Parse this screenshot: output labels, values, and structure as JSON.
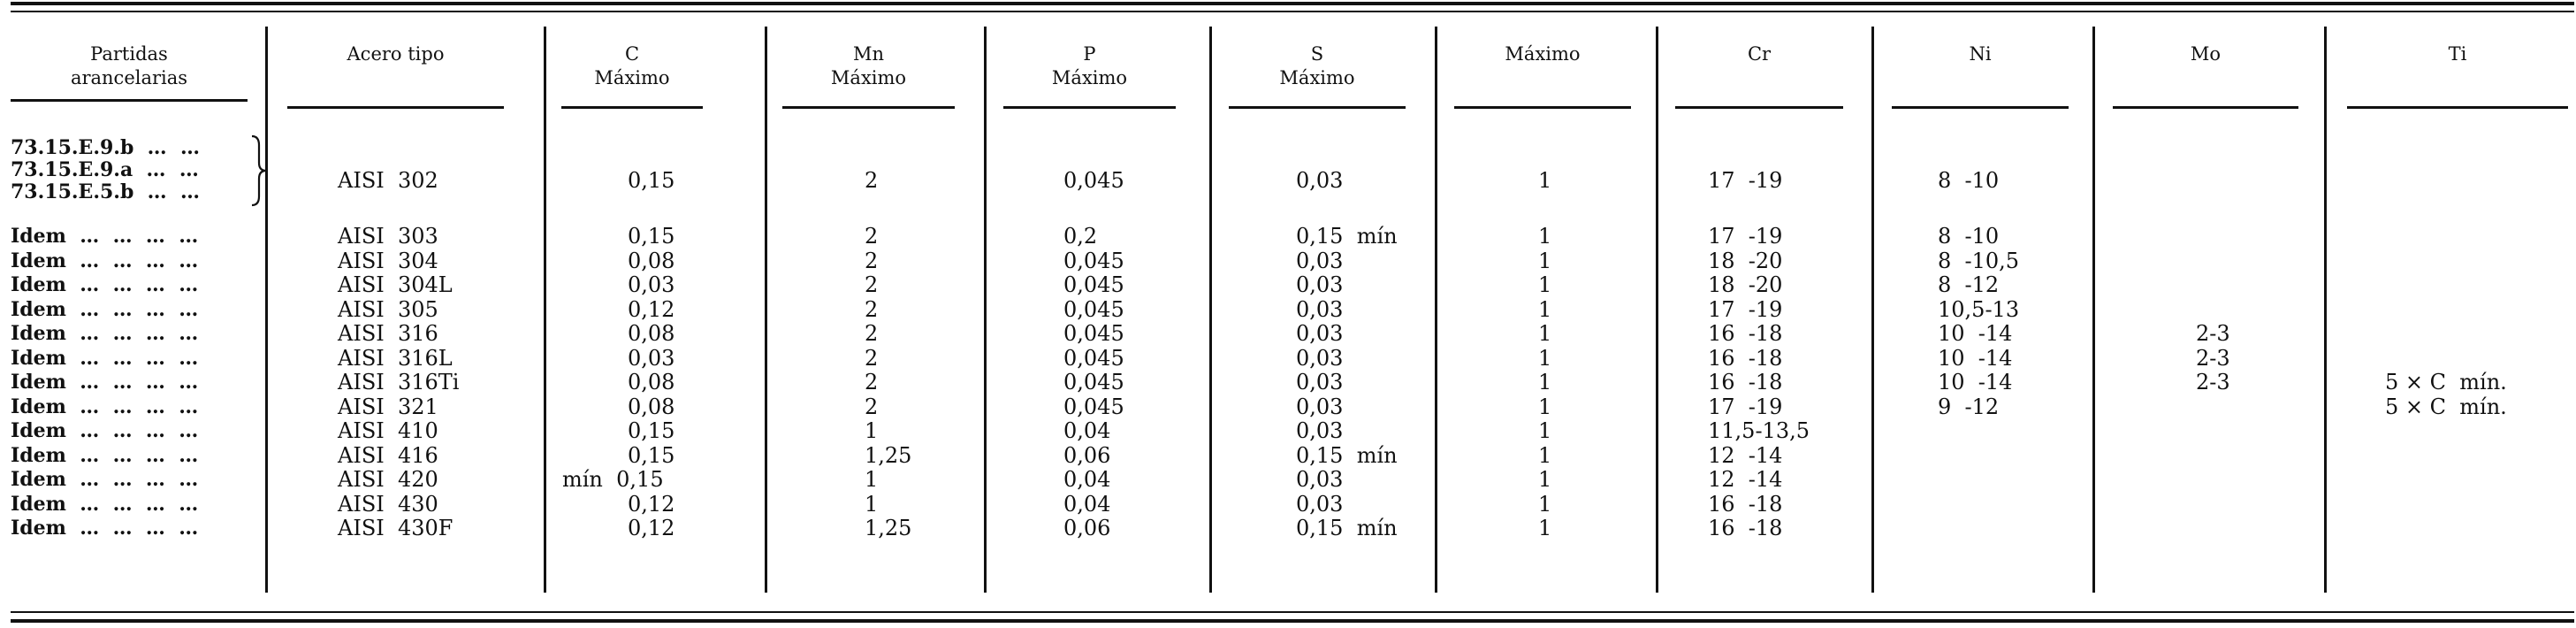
{
  "headers": [
    {
      "id": "partidas",
      "line1": "Partidas",
      "line2": "arancelarias"
    },
    {
      "id": "acero",
      "line1": "Acero  tipo",
      "line2": ""
    },
    {
      "id": "c",
      "line1": "C",
      "line2": "Máximo"
    },
    {
      "id": "mn",
      "line1": "Mn",
      "line2": "Máximo"
    },
    {
      "id": "p",
      "line1": "P",
      "line2": "Máximo"
    },
    {
      "id": "s",
      "line1": "S",
      "line2": "Máximo"
    },
    {
      "id": "si",
      "line1": "Máximo",
      "line2": ""
    },
    {
      "id": "cr",
      "line1": "Cr",
      "line2": ""
    },
    {
      "id": "ni",
      "line1": "Ni",
      "line2": ""
    },
    {
      "id": "mo",
      "line1": "Mo",
      "line2": ""
    },
    {
      "id": "ti",
      "line1": "Ti",
      "line2": ""
    }
  ],
  "group_partidas": [
    "73.15.E.9.b  …  …",
    "73.15.E.9.a  …  …",
    "73.15.E.5.b  …  …"
  ],
  "rows": [
    {
      "partida": "",
      "acero": "AISI  302",
      "c": "0,15",
      "mn": "2",
      "p": "0,045",
      "s": "0,03",
      "si": "1",
      "cr": "17  -19",
      "ni": "8  -10",
      "mo": "",
      "ti": ""
    },
    {
      "partida": "Idem  …  …  …  …",
      "acero": "AISI  303",
      "c": "0,15",
      "mn": "2",
      "p": "0,2",
      "s": "0,15  mín",
      "si": "1",
      "cr": "17  -19",
      "ni": "8  -10",
      "mo": "",
      "ti": ""
    },
    {
      "partida": "Idem  …  …  …  …",
      "acero": "AISI  304",
      "c": "0,08",
      "mn": "2",
      "p": "0,045",
      "s": "0,03",
      "si": "1",
      "cr": "18  -20",
      "ni": "8  -10,5",
      "mo": "",
      "ti": ""
    },
    {
      "partida": "Idem  …  …  …  …",
      "acero": "AISI  304L",
      "c": "0,03",
      "mn": "2",
      "p": "0,045",
      "s": "0,03",
      "si": "1",
      "cr": "18  -20",
      "ni": "8  -12",
      "mo": "",
      "ti": ""
    },
    {
      "partida": "Idem  …  …  …  …",
      "acero": "AISI  305",
      "c": "0,12",
      "mn": "2",
      "p": "0,045",
      "s": "0,03",
      "si": "1",
      "cr": "17  -19",
      "ni": "10,5-13",
      "mo": "",
      "ti": ""
    },
    {
      "partida": "Idem  …  …  …  …",
      "acero": "AISI  316",
      "c": "0,08",
      "mn": "2",
      "p": "0,045",
      "s": "0,03",
      "si": "1",
      "cr": "16  -18",
      "ni": "10  -14",
      "mo": "2-3",
      "ti": ""
    },
    {
      "partida": "Idem  …  …  …  …",
      "acero": "AISI  316L",
      "c": "0,03",
      "mn": "2",
      "p": "0,045",
      "s": "0,03",
      "si": "1",
      "cr": "16  -18",
      "ni": "10  -14",
      "mo": "2-3",
      "ti": ""
    },
    {
      "partida": "Idem  …  …  …  …",
      "acero": "AISI  316Ti",
      "c": "0,08",
      "mn": "2",
      "p": "0,045",
      "s": "0,03",
      "si": "1",
      "cr": "16  -18",
      "ni": "10  -14",
      "mo": "2-3",
      "ti": "5 × C  mín."
    },
    {
      "partida": "Idem  …  …  …  …",
      "acero": "AISI  321",
      "c": "0,08",
      "mn": "2",
      "p": "0,045",
      "s": "0,03",
      "si": "1",
      "cr": "17  -19",
      "ni": "9  -12",
      "mo": "",
      "ti": "5 × C  mín."
    },
    {
      "partida": "Idem  …  …  …  …",
      "acero": "AISI  410",
      "c": "0,15",
      "mn": "1",
      "p": "0,04",
      "s": "0,03",
      "si": "1",
      "cr": "11,5-13,5",
      "ni": "",
      "mo": "",
      "ti": ""
    },
    {
      "partida": "Idem  …  …  …  …",
      "acero": "AISI  416",
      "c": "0,15",
      "mn": "1,25",
      "p": "0,06",
      "s": "0,15  mín",
      "si": "1",
      "cr": "12  -14",
      "ni": "",
      "mo": "",
      "ti": ""
    },
    {
      "partida": "Idem  …  …  …  …",
      "acero": "AISI  420",
      "c": "mín  0,15",
      "mn": "1",
      "p": "0,04",
      "s": "0,03",
      "si": "1",
      "cr": "12  -14",
      "ni": "",
      "mo": "",
      "ti": ""
    },
    {
      "partida": "Idem  …  …  …  …",
      "acero": "AISI  430",
      "c": "0,12",
      "mn": "1",
      "p": "0,04",
      "s": "0,03",
      "si": "1",
      "cr": "16  -18",
      "ni": "",
      "mo": "",
      "ti": ""
    },
    {
      "partida": "Idem  …  …  …  …",
      "acero": "AISI  430F",
      "c": "0,12",
      "mn": "1,25",
      "p": "0,06",
      "s": "0,15  mín",
      "si": "1",
      "cr": "16  -18",
      "ni": "",
      "mo": "",
      "ti": ""
    }
  ]
}
